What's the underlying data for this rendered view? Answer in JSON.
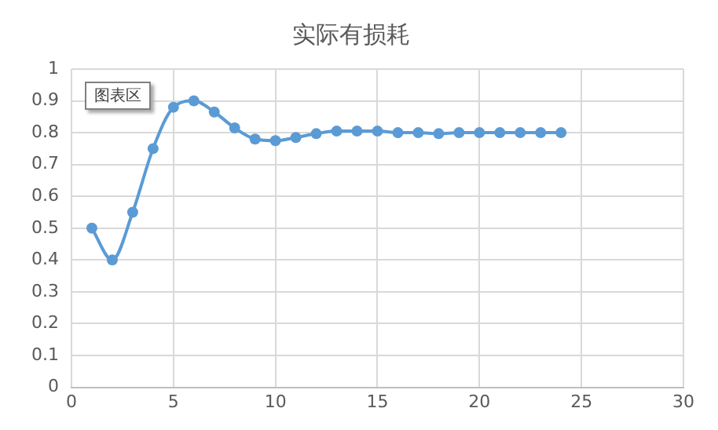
{
  "chart_data": {
    "type": "line",
    "title": "实际有损耗",
    "series": [
      {
        "color": "#5b9bd5",
        "x": [
          1,
          2,
          3,
          4,
          5,
          6,
          7,
          8,
          9,
          10,
          11,
          12,
          13,
          14,
          15,
          16,
          17,
          18,
          19,
          20,
          21,
          22,
          23,
          24
        ],
        "values": [
          0.5,
          0.4,
          0.55,
          0.75,
          0.88,
          0.9,
          0.865,
          0.815,
          0.78,
          0.775,
          0.785,
          0.797,
          0.805,
          0.805,
          0.805,
          0.8,
          0.8,
          0.797,
          0.8,
          0.8,
          0.8,
          0.8,
          0.8,
          0.8
        ]
      }
    ],
    "xlim": [
      0,
      30
    ],
    "xticks": [
      0,
      5,
      10,
      15,
      20,
      25,
      30
    ],
    "ylim": [
      0,
      1
    ],
    "yticks": [
      0,
      0.1,
      0.2,
      0.3,
      0.4,
      0.5,
      0.6,
      0.7,
      0.8,
      0.9,
      1
    ],
    "grid": true,
    "legend": false,
    "marker": "circle",
    "line_style": "solid",
    "annotations": [
      "图表区"
    ]
  }
}
